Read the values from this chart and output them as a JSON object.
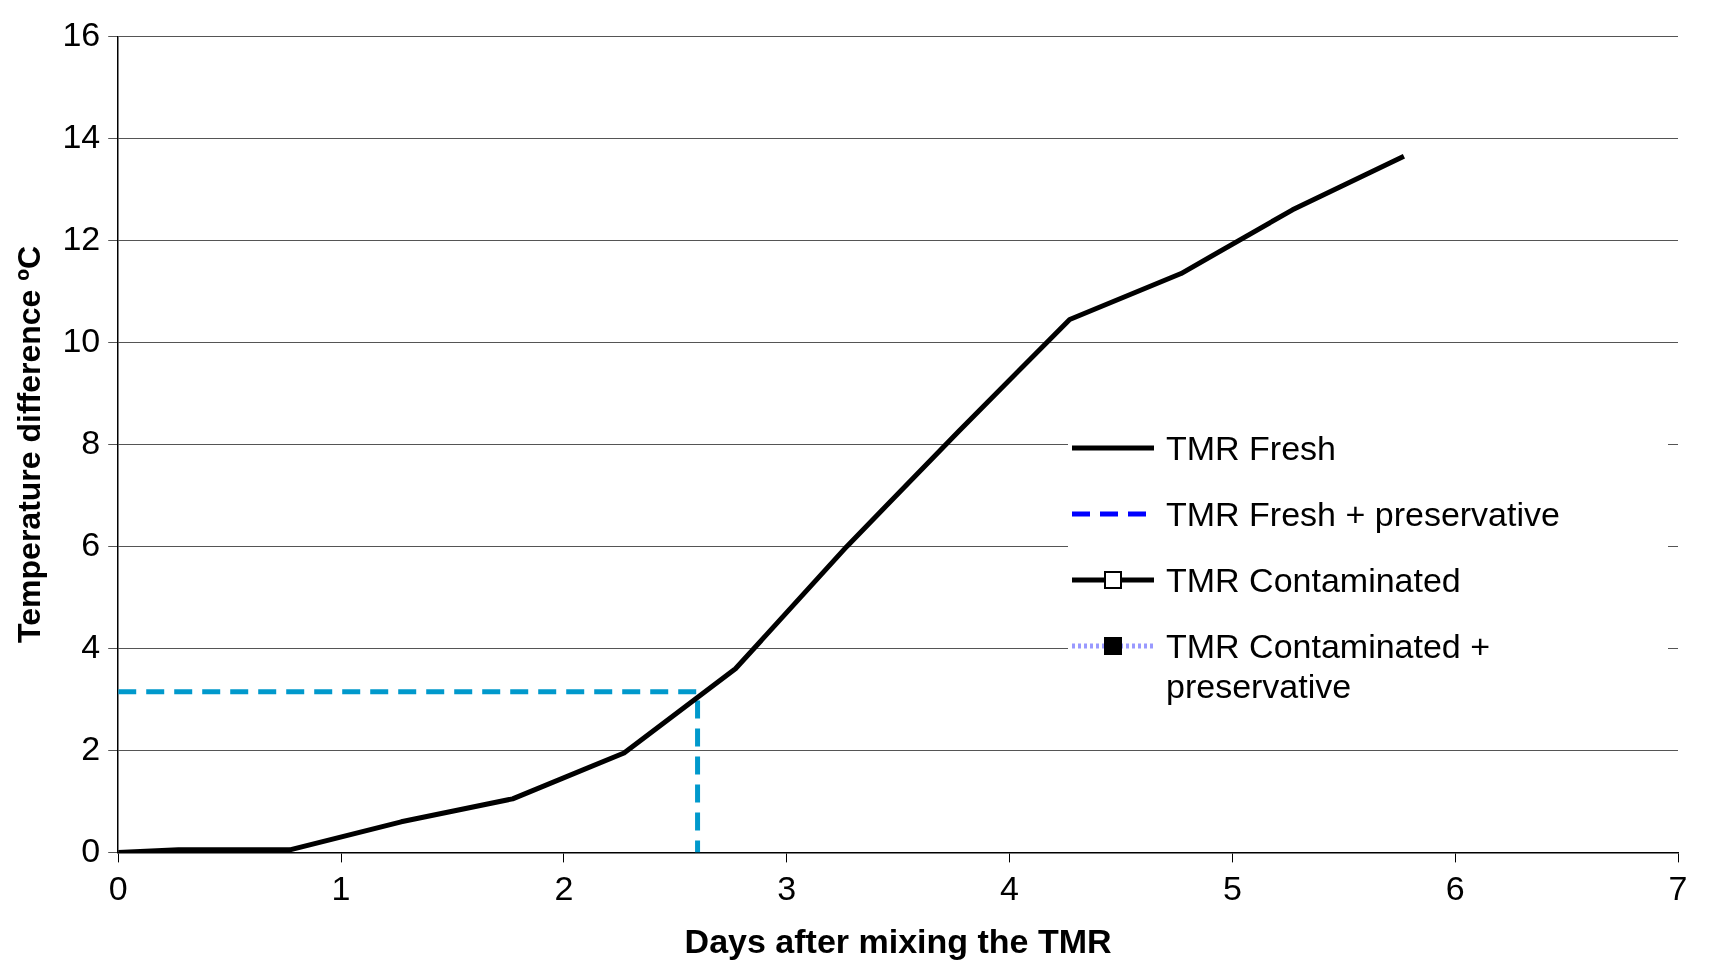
{
  "chart_data": {
    "type": "line",
    "xlabel": "Days after mixing the TMR",
    "ylabel": "Temperature difference ºC",
    "xlim": [
      0,
      7
    ],
    "xticks": [
      0,
      1,
      2,
      3,
      4,
      5,
      6,
      7
    ],
    "ylim": [
      0,
      16
    ],
    "yticks": [
      0,
      2,
      4,
      6,
      8,
      10,
      12,
      14,
      16
    ],
    "grid": "y",
    "legend": "right",
    "marker": "none",
    "series": [
      {
        "name": "TMR Fresh",
        "color": "#000000",
        "line_style": "solid",
        "x": [
          0,
          0.27,
          0.77,
          1.27,
          1.77,
          2.27,
          2.77,
          3.27,
          3.77,
          4.27,
          4.77,
          5.27,
          5.77
        ],
        "values": [
          0,
          0.05,
          0.05,
          0.6,
          1.05,
          1.95,
          3.6,
          6,
          8.25,
          10.45,
          11.35,
          12.6,
          13.65
        ]
      },
      {
        "name": "TMR Fresh + preservative",
        "color": "#0000ff",
        "line_style": "dashed"
      },
      {
        "name": "TMR Contaminated",
        "color": "#000000",
        "line_style": "solid",
        "marker": "square"
      },
      {
        "name": "TMR Contaminated + preservative",
        "color": "#9999ff",
        "line_style": "dotted",
        "marker": "square"
      },
      {
        "color": "#0099cc",
        "line_style": "dashed",
        "x": [
          0,
          2.6,
          2.6
        ],
        "values": [
          3.15,
          3.15,
          0
        ]
      }
    ]
  }
}
